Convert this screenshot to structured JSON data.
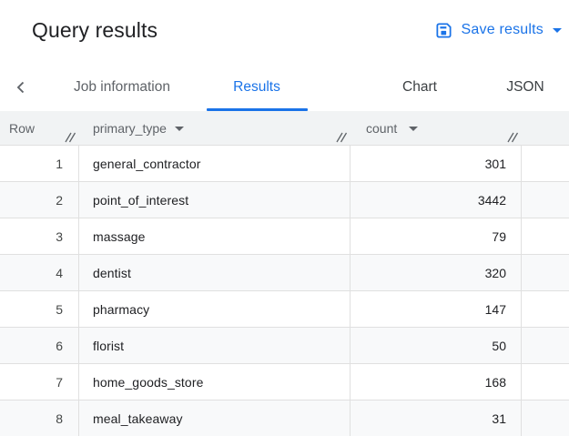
{
  "header": {
    "title": "Query results",
    "save_button": {
      "label": "Save results",
      "icon": "save-icon",
      "has_dropdown": true
    }
  },
  "tab_bar": {
    "back_icon": "chevron-left-icon",
    "tabs": [
      {
        "label": "Job information",
        "active": false
      },
      {
        "label": "Results",
        "active": true
      },
      {
        "label": "Chart",
        "active": false
      },
      {
        "label": "JSON",
        "active": false
      }
    ]
  },
  "results_table": {
    "columns": [
      {
        "label": "Row",
        "menu": false,
        "resizable": true
      },
      {
        "label": "primary_type",
        "menu": true,
        "menu_icon": "arrow-drop-down-icon",
        "resizable": true
      },
      {
        "label": "count",
        "menu": true,
        "menu_icon": "arrow-drop-down-icon",
        "resizable": true
      }
    ],
    "rows": [
      {
        "row": "1",
        "primary_type": "general_contractor",
        "count": "301"
      },
      {
        "row": "2",
        "primary_type": "point_of_interest",
        "count": "3442"
      },
      {
        "row": "3",
        "primary_type": "massage",
        "count": "79"
      },
      {
        "row": "4",
        "primary_type": "dentist",
        "count": "320"
      },
      {
        "row": "5",
        "primary_type": "pharmacy",
        "count": "147"
      },
      {
        "row": "6",
        "primary_type": "florist",
        "count": "50"
      },
      {
        "row": "7",
        "primary_type": "home_goods_store",
        "count": "168"
      },
      {
        "row": "8",
        "primary_type": "meal_takeaway",
        "count": "31"
      }
    ]
  },
  "colors": {
    "accent": "#1a73e8",
    "title_text": "#202124",
    "secondary_text": "#5f6368",
    "table_header_bg": "#f1f3f4",
    "row_alt_bg": "#f8f9fa",
    "border": "#e0e0e0"
  }
}
